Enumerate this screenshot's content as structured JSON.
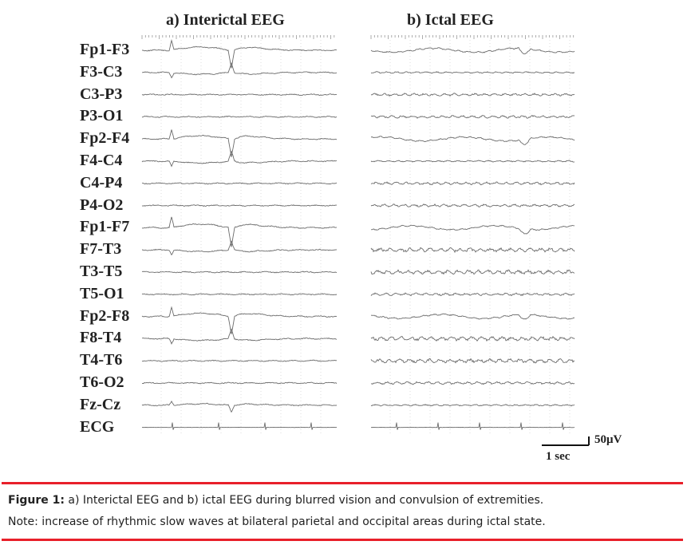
{
  "panels": [
    {
      "title": "a) Interictal EEG"
    },
    {
      "title": "b) Ictal EEG"
    }
  ],
  "channels": [
    "Fp1-F3",
    "F3-C3",
    "C3-P3",
    "P3-O1",
    "Fp2-F4",
    "F4-C4",
    "C4-P4",
    "P4-O2",
    "Fp1-F7",
    "F7-T3",
    "T3-T5",
    "T5-O1",
    "Fp2-F8",
    "F8-T4",
    "T4-T6",
    "T6-O2",
    "Fz-Cz",
    "ECG"
  ],
  "scale_bar": {
    "time": "1 sec",
    "amplitude": "50μV"
  },
  "caption": {
    "figure_label": "Figure 1:",
    "text": " a) Interictal EEG and b) ictal EEG during blurred vision and convulsion of extremities.",
    "note": "Note:  increase of rhythmic slow waves at bilateral parietal and occipital areas during ictal state."
  },
  "colors": {
    "trace": "#6b6b6b",
    "rule": "#e8202a",
    "text": "#222222"
  }
}
